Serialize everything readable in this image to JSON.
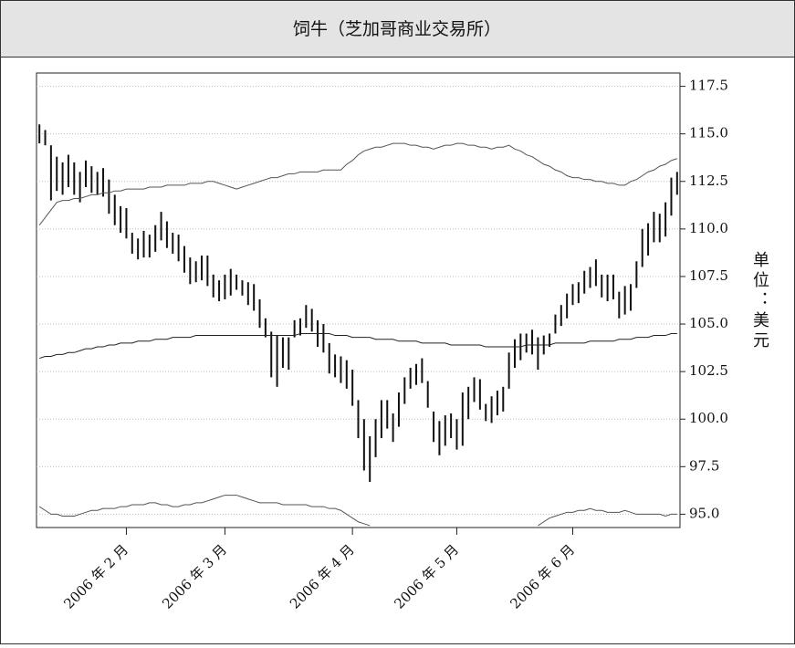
{
  "chart_data": {
    "type": "bar-ohlc",
    "title": "饲牛（芝加哥商业交易所）",
    "y_label": "单位：美元",
    "categories": [
      null,
      null,
      null,
      null,
      null,
      null,
      null,
      null,
      null,
      null,
      null,
      null,
      null,
      null,
      null,
      "2006 年 2 月",
      null,
      null,
      null,
      null,
      null,
      null,
      null,
      null,
      null,
      null,
      null,
      null,
      null,
      null,
      null,
      null,
      "2006 年 3 月",
      null,
      null,
      null,
      null,
      null,
      null,
      null,
      null,
      null,
      null,
      null,
      null,
      null,
      null,
      null,
      null,
      null,
      null,
      null,
      null,
      null,
      "2006 年 4 月",
      null,
      null,
      null,
      null,
      null,
      null,
      null,
      null,
      null,
      null,
      null,
      null,
      null,
      null,
      null,
      null,
      null,
      "2006 年 5 月",
      null,
      null,
      null,
      null,
      null,
      null,
      null,
      null,
      null,
      null,
      null,
      null,
      null,
      null,
      null,
      null,
      null,
      null,
      null,
      "2006 年 6 月",
      null,
      null,
      null,
      null,
      null,
      null,
      null,
      null,
      null,
      null,
      null,
      null,
      null,
      null,
      null,
      null,
      null,
      null
    ],
    "bars": {
      "color": "#111111",
      "high": [
        115.5,
        115.2,
        114.4,
        113.8,
        113.5,
        113.9,
        113.5,
        113.0,
        113.6,
        113.3,
        113.0,
        113.2,
        112.6,
        111.8,
        111.2,
        111.1,
        109.8,
        109.5,
        109.9,
        109.7,
        110.2,
        110.9,
        110.4,
        109.8,
        109.7,
        109.1,
        108.5,
        108.3,
        108.6,
        108.6,
        107.6,
        107.3,
        107.6,
        107.9,
        107.6,
        107.3,
        107.2,
        107.1,
        106.3,
        105.3,
        104.6,
        104.4,
        104.3,
        104.3,
        105.2,
        105.3,
        106.0,
        105.8,
        105.2,
        105.0,
        104.0,
        103.4,
        103.3,
        103.1,
        102.6,
        101.0,
        100.0,
        99.1,
        100.0,
        101.0,
        101.0,
        100.3,
        101.4,
        102.2,
        102.7,
        102.9,
        103.2,
        102.0,
        100.4,
        99.9,
        100.2,
        100.3,
        100.0,
        101.4,
        101.7,
        102.2,
        102.1,
        100.8,
        101.2,
        101.5,
        101.7,
        103.5,
        104.2,
        104.5,
        104.5,
        104.7,
        104.3,
        104.4,
        104.5,
        105.5,
        106.0,
        106.6,
        107.1,
        107.2,
        107.8,
        108.0,
        108.4,
        107.6,
        107.6,
        107.6,
        106.7,
        107.0,
        107.1,
        108.3,
        110.0,
        110.3,
        110.9,
        110.8,
        111.4,
        112.7,
        113.0
      ],
      "low": [
        114.5,
        114.4,
        111.5,
        112.0,
        111.8,
        112.2,
        111.8,
        111.4,
        112.2,
        111.9,
        111.8,
        111.7,
        110.8,
        110.2,
        109.8,
        109.5,
        108.7,
        108.4,
        108.5,
        108.5,
        108.8,
        109.4,
        109.0,
        108.7,
        108.3,
        107.7,
        107.1,
        107.2,
        107.3,
        107.0,
        106.4,
        106.2,
        106.3,
        106.5,
        106.8,
        106.5,
        106.0,
        105.7,
        104.8,
        104.3,
        102.2,
        101.7,
        102.7,
        102.6,
        104.3,
        104.4,
        104.8,
        104.6,
        103.8,
        103.5,
        102.4,
        102.2,
        101.9,
        101.6,
        100.7,
        99.0,
        97.3,
        96.7,
        98.0,
        99.0,
        99.5,
        98.8,
        99.6,
        100.8,
        101.6,
        101.8,
        101.9,
        100.6,
        98.8,
        98.1,
        98.6,
        99.0,
        98.4,
        98.6,
        100.0,
        100.9,
        100.5,
        99.9,
        99.8,
        100.2,
        100.4,
        101.6,
        102.7,
        103.1,
        103.5,
        103.4,
        102.6,
        103.4,
        103.8,
        104.5,
        104.9,
        105.3,
        106.0,
        106.1,
        106.6,
        106.9,
        107.0,
        106.4,
        106.2,
        106.3,
        105.3,
        105.5,
        105.7,
        106.9,
        108.0,
        108.6,
        109.3,
        109.3,
        109.6,
        110.7,
        111.8
      ]
    },
    "lines": [
      {
        "color": "#555555",
        "values": [
          110.2,
          110.6,
          111.0,
          111.4,
          111.5,
          111.5,
          111.6,
          111.6,
          111.7,
          111.8,
          111.8,
          111.9,
          111.9,
          112.0,
          112.0,
          112.1,
          112.1,
          112.1,
          112.1,
          112.2,
          112.2,
          112.2,
          112.3,
          112.3,
          112.3,
          112.3,
          112.4,
          112.4,
          112.4,
          112.5,
          112.5,
          112.4,
          112.3,
          112.2,
          112.1,
          112.2,
          112.3,
          112.4,
          112.5,
          112.6,
          112.7,
          112.7,
          112.8,
          112.9,
          112.9,
          113.0,
          113.0,
          113.0,
          113.0,
          113.1,
          113.1,
          113.1,
          113.1,
          113.4,
          113.6,
          113.9,
          114.1,
          114.2,
          114.3,
          114.3,
          114.4,
          114.5,
          114.5,
          114.5,
          114.4,
          114.4,
          114.3,
          114.3,
          114.2,
          114.3,
          114.4,
          114.4,
          114.5,
          114.5,
          114.4,
          114.4,
          114.3,
          114.3,
          114.2,
          114.3,
          114.3,
          114.4,
          114.2,
          114.1,
          113.9,
          113.8,
          113.6,
          113.4,
          113.3,
          113.1,
          113.0,
          112.8,
          112.7,
          112.7,
          112.6,
          112.6,
          112.5,
          112.5,
          112.4,
          112.4,
          112.3,
          112.3,
          112.5,
          112.6,
          112.8,
          113.0,
          113.1,
          113.3,
          113.4,
          113.6,
          113.7
        ]
      },
      {
        "color": "#222222",
        "values": [
          103.2,
          103.3,
          103.3,
          103.4,
          103.4,
          103.5,
          103.5,
          103.6,
          103.7,
          103.7,
          103.8,
          103.8,
          103.9,
          103.9,
          104.0,
          104.0,
          104.0,
          104.1,
          104.1,
          104.1,
          104.2,
          104.2,
          104.2,
          104.3,
          104.3,
          104.3,
          104.3,
          104.4,
          104.4,
          104.4,
          104.4,
          104.4,
          104.4,
          104.4,
          104.4,
          104.4,
          104.4,
          104.4,
          104.4,
          104.4,
          104.4,
          104.4,
          104.4,
          104.4,
          104.4,
          104.5,
          104.5,
          104.5,
          104.5,
          104.5,
          104.5,
          104.4,
          104.4,
          104.4,
          104.3,
          104.3,
          104.3,
          104.3,
          104.2,
          104.2,
          104.2,
          104.2,
          104.1,
          104.1,
          104.1,
          104.1,
          104.0,
          104.0,
          104.0,
          104.0,
          104.0,
          103.9,
          103.9,
          103.9,
          103.9,
          103.9,
          103.9,
          103.8,
          103.8,
          103.8,
          103.8,
          103.8,
          103.8,
          103.8,
          103.9,
          103.9,
          103.9,
          103.9,
          103.9,
          104.0,
          104.0,
          104.0,
          104.0,
          104.0,
          104.0,
          104.1,
          104.1,
          104.1,
          104.1,
          104.1,
          104.2,
          104.2,
          104.2,
          104.3,
          104.3,
          104.3,
          104.4,
          104.4,
          104.4,
          104.5,
          104.5
        ]
      },
      {
        "color": "#555555",
        "values": [
          95.4,
          95.2,
          95.0,
          95.0,
          94.9,
          94.9,
          94.9,
          95.0,
          95.1,
          95.2,
          95.2,
          95.3,
          95.3,
          95.3,
          95.4,
          95.4,
          95.5,
          95.5,
          95.5,
          95.6,
          95.6,
          95.5,
          95.5,
          95.4,
          95.4,
          95.5,
          95.5,
          95.6,
          95.6,
          95.7,
          95.8,
          95.9,
          96.0,
          96.0,
          96.0,
          95.9,
          95.8,
          95.7,
          95.6,
          95.6,
          95.6,
          95.6,
          95.5,
          95.5,
          95.5,
          95.5,
          95.5,
          95.4,
          95.4,
          95.4,
          95.3,
          95.3,
          95.2,
          95.0,
          94.8,
          94.6,
          94.5,
          94.4,
          null,
          null,
          null,
          null,
          null,
          null,
          null,
          null,
          null,
          null,
          null,
          null,
          null,
          null,
          null,
          null,
          null,
          null,
          null,
          null,
          null,
          null,
          null,
          null,
          null,
          null,
          null,
          null,
          94.4,
          94.6,
          94.8,
          94.9,
          95.0,
          95.1,
          95.1,
          95.2,
          95.2,
          95.3,
          95.2,
          95.2,
          95.1,
          95.1,
          95.1,
          95.2,
          95.1,
          95.0,
          95.0,
          95.0,
          95.0,
          95.0,
          94.9,
          95.0,
          95.0
        ]
      }
    ],
    "ylim": [
      94.3,
      118.2
    ],
    "yticks": [
      {
        "value": 95,
        "label": "95.0"
      },
      97.5,
      {
        "value": 100,
        "label": "100.0"
      },
      102.5,
      {
        "value": 105,
        "label": "105.0"
      },
      107.5,
      {
        "value": 110,
        "label": "110.0"
      },
      112.5,
      {
        "value": 115,
        "label": "115.0"
      },
      117.5
    ],
    "grid": true
  }
}
